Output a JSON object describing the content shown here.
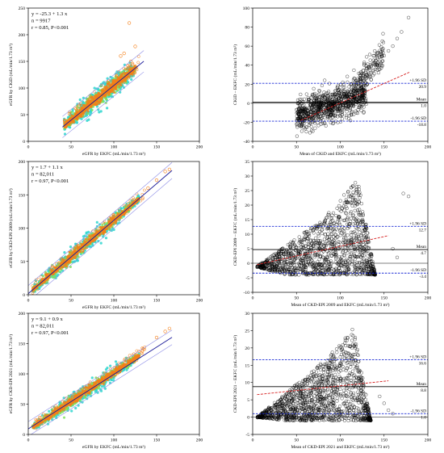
{
  "figure": {
    "background": "#ffffff",
    "colors": {
      "scatter_cyan": "#2fd6cf",
      "scatter_green": "#7fe05a",
      "scatter_orange": "#f57f17",
      "fit_line": "#1a1a99",
      "band_line": "#8c8ce6",
      "mean_line": "#000000",
      "loa_line": "#1f2fd6",
      "trend_line": "#d62020",
      "ba_points": "#000000"
    }
  },
  "chart_data": [
    {
      "id": "scatter-ckid",
      "type": "scatter",
      "xlabel": "eGFR by EKFC (mL/min/1.73 m²)",
      "ylabel": "eGFR by CKiD (mL/min/1.73 m²)",
      "xlim": [
        0,
        200
      ],
      "ylim": [
        0,
        250
      ],
      "xticks": [
        0,
        50,
        100,
        150,
        200
      ],
      "yticks": [
        0,
        50,
        100,
        150,
        200,
        250
      ],
      "stats": [
        "y = -25.3 + 1.3 x",
        "n = 9917",
        "r = 0.85, P<0.001"
      ],
      "fit": {
        "intercept": -25.3,
        "slope": 1.3,
        "band": 20
      },
      "cloud": {
        "x": [
          42,
          125
        ],
        "center_slope": 1.3,
        "center_intercept": -25.3,
        "spread": 22
      },
      "outliers": [
        [
          118,
          222
        ],
        [
          125,
          178
        ],
        [
          112,
          165
        ],
        [
          48,
          52
        ],
        [
          120,
          150
        ],
        [
          108,
          160
        ]
      ]
    },
    {
      "id": "ba-ckid",
      "type": "scatter",
      "xlabel": "Mean of CKiD and EKFC (mL/min/1.73 m²)",
      "ylabel": "CKiD – EKFC (mL/min/1.73 m²)",
      "xlim": [
        0,
        200
      ],
      "ylim": [
        -40,
        100
      ],
      "xticks": [
        0,
        50,
        100,
        150,
        200
      ],
      "yticks": [
        -40,
        -20,
        0,
        20,
        40,
        60,
        80,
        100
      ],
      "mean": 1.0,
      "upper": 20.9,
      "lower": -18.8,
      "upper_label": "+1.96 SD",
      "mean_label": "Mean",
      "lower_label": "-1.96 SD",
      "upper_value": "20.9",
      "mean_value": "1.0",
      "lower_value": "-18.8",
      "trend": {
        "x": [
          55,
          180
        ],
        "y": [
          -18,
          33
        ]
      },
      "cloud": {
        "x": [
          50,
          130
        ],
        "slope": 0.28,
        "intercept": -27,
        "spread": 14
      },
      "tail": [
        [
          140,
          40
        ],
        [
          150,
          50
        ],
        [
          160,
          60
        ],
        [
          170,
          75
        ],
        [
          178,
          90
        ],
        [
          145,
          44
        ],
        [
          165,
          68
        ],
        [
          155,
          55
        ]
      ]
    },
    {
      "id": "scatter-ckdepi2009",
      "type": "scatter",
      "xlabel": "eGFR by EKFC (mL/min/1.73 m²)",
      "ylabel": "eGFR by CKD-EPI 2009 (mL/min/1.73 m²)",
      "xlim": [
        0,
        200
      ],
      "ylim": [
        0,
        200
      ],
      "xticks": [
        0,
        50,
        100,
        150,
        200
      ],
      "yticks": [
        0,
        50,
        100,
        150,
        200
      ],
      "stats": [
        "y = 1.7 + 1.1 x",
        "n = 82,011",
        "r = 0.97, P<0.001"
      ],
      "fit": {
        "intercept": 1.7,
        "slope": 1.1,
        "band": 12
      },
      "cloud": {
        "x": [
          5,
          130
        ],
        "center_slope": 1.1,
        "center_intercept": 1.7,
        "spread": 13
      },
      "outliers": [
        [
          160,
          185
        ],
        [
          165,
          188
        ],
        [
          140,
          160
        ],
        [
          150,
          172
        ]
      ]
    },
    {
      "id": "ba-ckdepi2009",
      "type": "scatter",
      "xlabel": "Mean of CKD-EPI 2009 and EKFC (mL/min/1.73 m²)",
      "ylabel": "CKD-EPI 2009 – EKFC (mL/min/1.73 m²)",
      "xlim": [
        0,
        200
      ],
      "ylim": [
        -10,
        35
      ],
      "xticks": [
        0,
        50,
        100,
        150,
        200
      ],
      "yticks": [
        -10,
        -5,
        0,
        5,
        10,
        15,
        20,
        25,
        30,
        35
      ],
      "mean": 4.7,
      "upper": 12.7,
      "lower": -3.4,
      "upper_label": "+1.96 SD",
      "mean_label": "Mean",
      "lower_label": "-1.96 SD",
      "upper_value": "12.7",
      "mean_value": "4.7",
      "lower_value": "-3.4",
      "trend": {
        "x": [
          5,
          155
        ],
        "y": [
          -0.5,
          9.5
        ]
      },
      "wedge": {
        "apex": [
          5,
          -1
        ],
        "left_top": [
          80,
          15
        ],
        "right_top": [
          120,
          29
        ],
        "bottom": -4,
        "right": 140
      },
      "tail": [
        [
          172,
          24
        ],
        [
          178,
          23
        ],
        [
          160,
          5
        ],
        [
          165,
          2
        ]
      ]
    },
    {
      "id": "scatter-ckdepi2021",
      "type": "scatter",
      "xlabel": "eGFR by EKFC (mL/min/1.73 m²)",
      "ylabel": "eGFR by CKD-EPI 2021 (mL/min/1.73 m²)",
      "xlim": [
        0,
        200
      ],
      "ylim": [
        0,
        200
      ],
      "xticks": [
        0,
        50,
        100,
        150,
        200
      ],
      "yticks": [
        0,
        50,
        100,
        150,
        200
      ],
      "stats": [
        "y = 9.1 + 0.9 x",
        "n = 82,011",
        "r = 0.97, P<0.001"
      ],
      "fit": {
        "intercept": 9.1,
        "slope": 0.9,
        "band": 12
      },
      "cloud": {
        "x": [
          5,
          130
        ],
        "center_slope": 0.95,
        "center_intercept": 7,
        "spread": 13
      },
      "outliers": [
        [
          160,
          170
        ],
        [
          165,
          175
        ],
        [
          150,
          160
        ]
      ]
    },
    {
      "id": "ba-ckdepi2021",
      "type": "scatter",
      "xlabel": "Mean of CKD-EPI 2021 and EKFC (mL/min/1.73 m²)",
      "ylabel": "CKD-EPI 2021 – EKFC (mL/min/1.73 m²)",
      "xlim": [
        0,
        200
      ],
      "ylim": [
        -5,
        30
      ],
      "xticks": [
        0,
        50,
        100,
        150,
        200
      ],
      "yticks": [
        -5,
        0,
        5,
        10,
        15,
        20,
        25,
        30
      ],
      "mean": 8.8,
      "upper": 16.6,
      "lower": 1.0,
      "upper_label": "+1.96 SD",
      "mean_label": "Mean",
      "lower_label": "-1.96 SD",
      "upper_value": "16.6",
      "mean_value": "8.8",
      "lower_value": "1.0",
      "trend": {
        "x": [
          5,
          155
        ],
        "y": [
          6.5,
          10.5
        ]
      },
      "wedge": {
        "apex": [
          5,
          0
        ],
        "left_top": [
          85,
          17
        ],
        "right_top": [
          115,
          26
        ],
        "bottom": -1,
        "right": 135
      },
      "tail": [
        [
          150,
          4
        ],
        [
          155,
          2
        ],
        [
          160,
          1
        ],
        [
          145,
          6
        ]
      ]
    }
  ]
}
